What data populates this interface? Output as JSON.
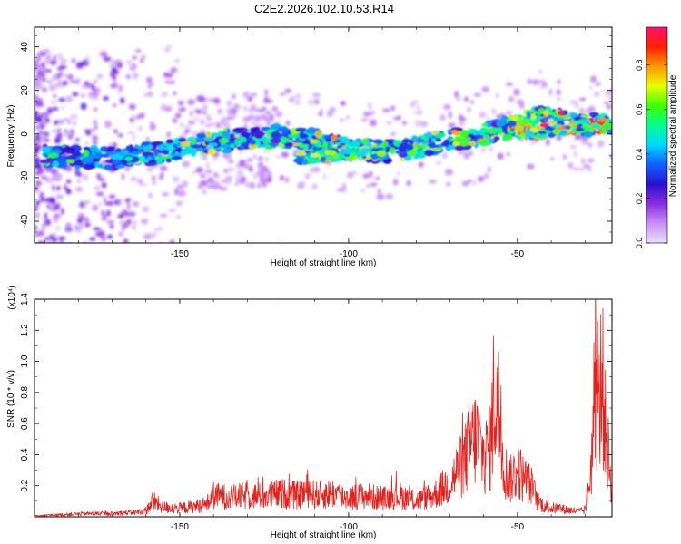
{
  "figure": {
    "title": "C2E2.2026.102.10.53.R14"
  },
  "colorbar": {
    "label": "Normalized spectral amplitude",
    "ticks": [
      "0.0",
      "0.2",
      "0.4",
      "0.6",
      "0.8"
    ],
    "tick_values": [
      0.0,
      0.2,
      0.4,
      0.6,
      0.8
    ],
    "range": [
      0.0,
      0.97
    ],
    "colors": [
      "#e8e0ff",
      "#c890f8",
      "#8a2be2",
      "#2a10d0",
      "#1060ff",
      "#00d8ff",
      "#00ff90",
      "#40ff00",
      "#e8ff00",
      "#ff9800",
      "#ff2000",
      "#ff1070"
    ]
  },
  "chart_data": [
    {
      "type": "heatmap",
      "title": "",
      "xlabel": "Height of straight line (km)",
      "ylabel": "Frequency (Hz)",
      "xlim": [
        -193,
        -22
      ],
      "ylim": [
        -50,
        49
      ],
      "xticks": [
        -150,
        -100,
        -50
      ],
      "xtick_labels": [
        "-150",
        "-100",
        "-50"
      ],
      "yticks": [
        -40,
        -20,
        0,
        20,
        40
      ],
      "ytick_labels": [
        "-40",
        "-20",
        "0",
        "20",
        "40"
      ],
      "ridge": {
        "x": [
          -190,
          -180,
          -170,
          -160,
          -150,
          -140,
          -130,
          -120,
          -110,
          -100,
          -90,
          -80,
          -70,
          -60,
          -50,
          -45,
          -40,
          -35,
          -30,
          -25,
          -22
        ],
        "y": [
          -10,
          -11,
          -11,
          -9,
          -7,
          -4,
          -2,
          -1,
          -3,
          -7,
          -8,
          -6,
          -3,
          0,
          4,
          7,
          9,
          5,
          4,
          5,
          3
        ]
      },
      "branches": [
        {
          "x": [
            -115,
            -105,
            -100,
            -95,
            -90
          ],
          "y": [
            -11,
            -10,
            -9,
            -9,
            -8
          ]
        },
        {
          "x": [
            -50,
            -45,
            -40,
            -35,
            -30,
            -25,
            -22
          ],
          "y": [
            1,
            0,
            1,
            2,
            4,
            5,
            3
          ]
        }
      ]
    },
    {
      "type": "line",
      "title": "",
      "xlabel": "Height of straight line (km)",
      "ylabel": "SNR (10 * v/v)",
      "y_multiplier_label": "(x10⁴)",
      "xlim": [
        -193,
        -22
      ],
      "ylim": [
        0,
        1.4
      ],
      "xticks": [
        -150,
        -100,
        -50
      ],
      "xtick_labels": [
        "-150",
        "-100",
        "-50"
      ],
      "yticks": [
        0.2,
        0.4,
        0.6,
        0.8,
        1.0,
        1.2,
        1.4
      ],
      "ytick_labels": [
        "0.2",
        "0.4",
        "0.6",
        "0.8",
        "1.0",
        "1.2",
        "1.4"
      ],
      "color": "#e8201c",
      "series": [
        {
          "name": "SNR",
          "x": [
            -193,
            -185,
            -178,
            -170,
            -165,
            -160,
            -158,
            -155,
            -150,
            -145,
            -142,
            -140,
            -135,
            -130,
            -125,
            -120,
            -115,
            -112,
            -110,
            -105,
            -100,
            -95,
            -92,
            -90,
            -85,
            -80,
            -75,
            -72,
            -70,
            -68,
            -66,
            -64,
            -62,
            -60,
            -58,
            -57,
            -56,
            -55,
            -54,
            -52,
            -50,
            -48,
            -46,
            -44,
            -42,
            -40,
            -38,
            -36,
            -34,
            -32,
            -30,
            -29,
            -28,
            -27,
            -26,
            -25,
            -24,
            -23,
            -22
          ],
          "y": [
            0.01,
            0.02,
            0.03,
            0.03,
            0.04,
            0.05,
            0.15,
            0.09,
            0.08,
            0.1,
            0.12,
            0.2,
            0.18,
            0.2,
            0.19,
            0.22,
            0.2,
            0.25,
            0.2,
            0.22,
            0.18,
            0.2,
            0.18,
            0.17,
            0.2,
            0.15,
            0.2,
            0.27,
            0.32,
            0.42,
            0.5,
            0.68,
            0.75,
            0.55,
            0.65,
            1.12,
            1.16,
            0.8,
            0.45,
            0.35,
            0.45,
            0.35,
            0.3,
            0.15,
            0.1,
            0.08,
            0.08,
            0.07,
            0.06,
            0.05,
            0.06,
            0.25,
            0.55,
            1.37,
            0.9,
            1.38,
            0.85,
            0.55,
            0.3
          ]
        }
      ]
    }
  ]
}
